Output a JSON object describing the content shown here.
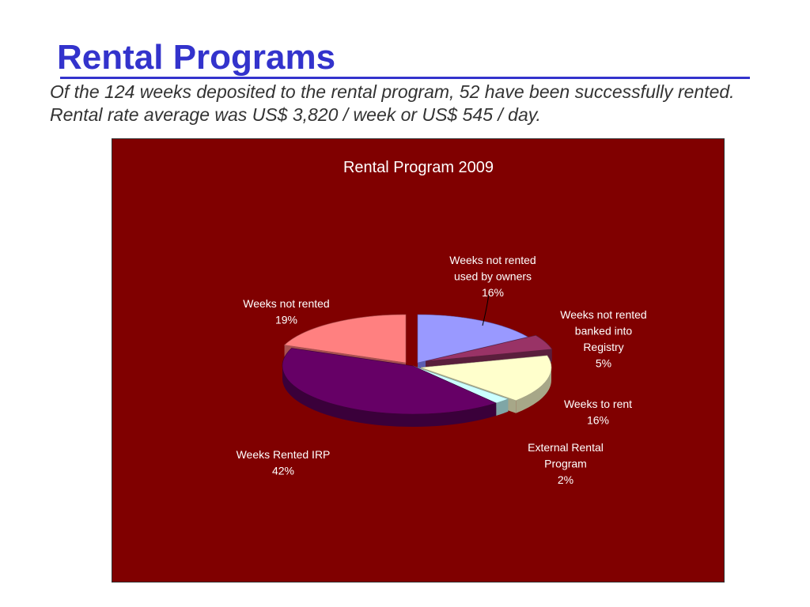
{
  "slide": {
    "title": "Rental Programs",
    "subtitle": "Of the 124 weeks deposited to the rental program, 52 have been successfully rented. Rental rate average was US$ 3,820 / week or US$ 545 / day."
  },
  "chart_data": {
    "type": "pie",
    "title": "Rental Program 2009",
    "background": "#800000",
    "slices": [
      {
        "label": [
          "Weeks not rented",
          "used by owners",
          "16%"
        ],
        "value": 16,
        "color": "#9999ff",
        "dark": "#5c5cb0"
      },
      {
        "label": [
          "Weeks not rented",
          "banked into",
          "Registry",
          "5%"
        ],
        "value": 5,
        "color": "#993366",
        "dark": "#5a1e3c"
      },
      {
        "label": [
          "Weeks to rent",
          "16%"
        ],
        "value": 16,
        "color": "#ffffcc",
        "dark": "#a7a788"
      },
      {
        "label": [
          "External Rental",
          "Program",
          "2%"
        ],
        "value": 2,
        "color": "#ccffff",
        "dark": "#7fa6a6"
      },
      {
        "label": [
          "Weeks Rented IRP",
          "42%"
        ],
        "value": 42,
        "color": "#660066",
        "dark": "#3a003a"
      },
      {
        "label": [
          "Weeks not rented",
          "19%"
        ],
        "value": 19,
        "color": "#ff8080",
        "dark": "#a85050"
      }
    ]
  }
}
